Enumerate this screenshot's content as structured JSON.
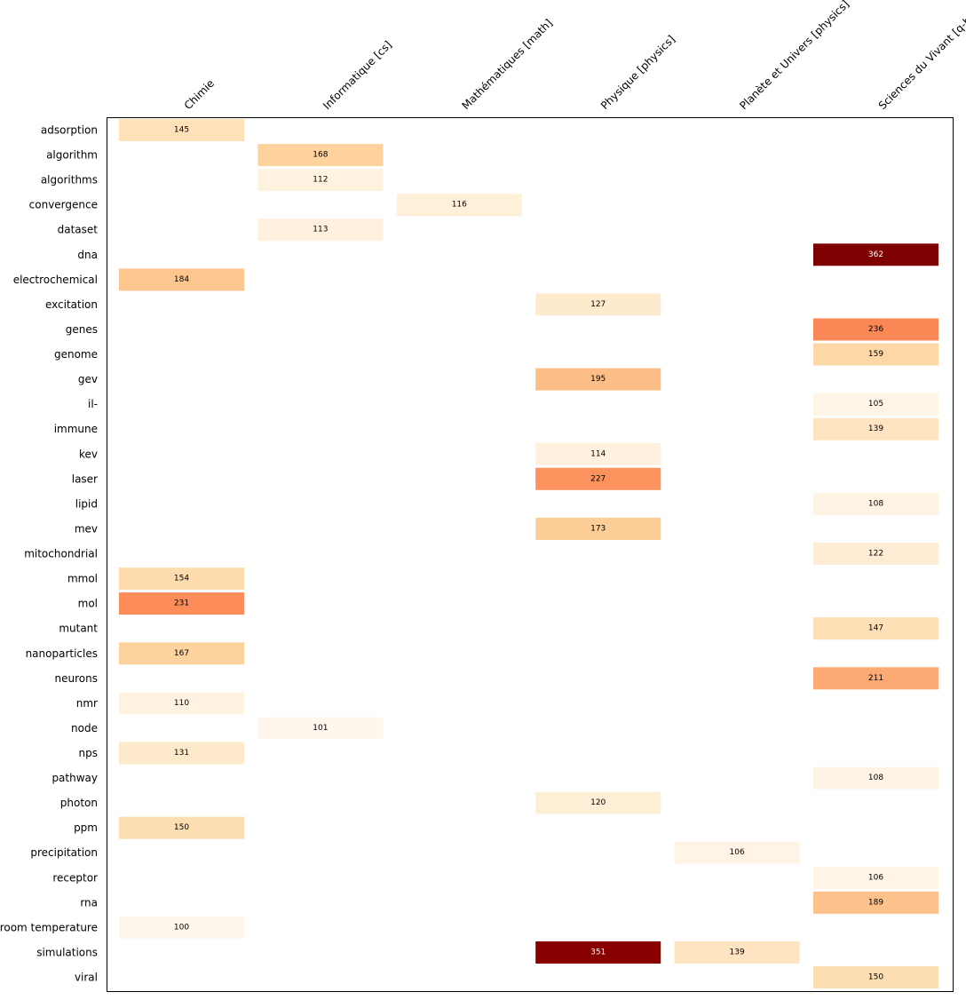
{
  "chart_data": {
    "type": "heatmap",
    "title": "",
    "xlabel": "",
    "ylabel": "",
    "columns": [
      "Chimie",
      "Informatique [cs]",
      "Mathématiques [math]",
      "Physique [physics]",
      "Planète et Univers [physics]",
      "Sciences du Vivant [q-bio]"
    ],
    "rows": [
      "adsorption",
      "algorithm",
      "algorithms",
      "convergence",
      "dataset",
      "dna",
      "electrochemical",
      "excitation",
      "genes",
      "genome",
      "gev",
      "il-",
      "immune",
      "kev",
      "laser",
      "lipid",
      "mev",
      "mitochondrial",
      "mmol",
      "mol",
      "mutant",
      "nanoparticles",
      "neurons",
      "nmr",
      "node",
      "nps",
      "pathway",
      "photon",
      "ppm",
      "precipitation",
      "receptor",
      "rna",
      "room temperature",
      "simulations",
      "viral"
    ],
    "values": [
      [
        145,
        null,
        null,
        null,
        null,
        null
      ],
      [
        null,
        168,
        null,
        null,
        null,
        null
      ],
      [
        null,
        112,
        null,
        null,
        null,
        null
      ],
      [
        null,
        null,
        116,
        null,
        null,
        null
      ],
      [
        null,
        113,
        null,
        null,
        null,
        null
      ],
      [
        null,
        null,
        null,
        null,
        null,
        362
      ],
      [
        184,
        null,
        null,
        null,
        null,
        null
      ],
      [
        null,
        null,
        null,
        127,
        null,
        null
      ],
      [
        null,
        null,
        null,
        null,
        null,
        236
      ],
      [
        null,
        null,
        null,
        null,
        null,
        159
      ],
      [
        null,
        null,
        null,
        195,
        null,
        null
      ],
      [
        null,
        null,
        null,
        null,
        null,
        105
      ],
      [
        null,
        null,
        null,
        null,
        null,
        139
      ],
      [
        null,
        null,
        null,
        114,
        null,
        null
      ],
      [
        null,
        null,
        null,
        227,
        null,
        null
      ],
      [
        null,
        null,
        null,
        null,
        null,
        108
      ],
      [
        null,
        null,
        null,
        173,
        null,
        null
      ],
      [
        null,
        null,
        null,
        null,
        null,
        122
      ],
      [
        154,
        null,
        null,
        null,
        null,
        null
      ],
      [
        231,
        null,
        null,
        null,
        null,
        null
      ],
      [
        null,
        null,
        null,
        null,
        null,
        147
      ],
      [
        167,
        null,
        null,
        null,
        null,
        null
      ],
      [
        null,
        null,
        null,
        null,
        null,
        211
      ],
      [
        110,
        null,
        null,
        null,
        null,
        null
      ],
      [
        null,
        101,
        null,
        null,
        null,
        null
      ],
      [
        131,
        null,
        null,
        null,
        null,
        null
      ],
      [
        null,
        null,
        null,
        null,
        null,
        108
      ],
      [
        null,
        null,
        null,
        120,
        null,
        null
      ],
      [
        150,
        null,
        null,
        null,
        null,
        null
      ],
      [
        null,
        null,
        null,
        null,
        106,
        null
      ],
      [
        null,
        null,
        null,
        null,
        null,
        106
      ],
      [
        null,
        null,
        null,
        null,
        null,
        189
      ],
      [
        100,
        null,
        null,
        null,
        null,
        null
      ],
      [
        null,
        null,
        null,
        351,
        139,
        null
      ],
      [
        null,
        null,
        null,
        null,
        null,
        150
      ]
    ],
    "colorscale": [
      "#fff7ec",
      "#fee8c8",
      "#fdd49e",
      "#fdbb84",
      "#fc8d59",
      "#ef6548",
      "#d7301f",
      "#990000",
      "#7f0000"
    ],
    "value_range": [
      100,
      362
    ],
    "grid": false,
    "legend": "none"
  }
}
